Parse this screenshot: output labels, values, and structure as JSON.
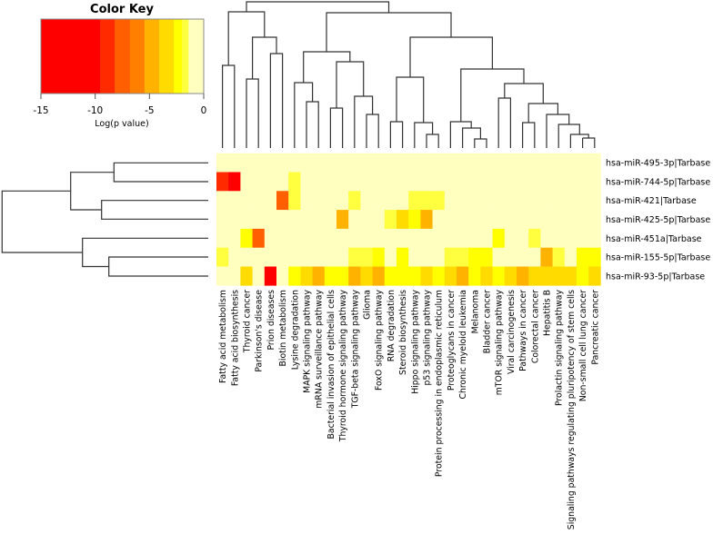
{
  "chart_data": {
    "type": "heatmap",
    "title": "Color Key",
    "colorbar_label": "Log(p value)",
    "colorbar_ticks": [
      "-15",
      "-10",
      "-5",
      "0"
    ],
    "colorbar_range": [
      -15,
      0
    ],
    "breaks": [
      -15,
      -9.55,
      -8.2,
      -6.8,
      -5.45,
      -4.1,
      -2.75,
      -2,
      -1.4,
      0
    ],
    "colors": [
      "#FF0000",
      "#FF2A00",
      "#FF5F00",
      "#FF8000",
      "#FFB300",
      "#FFDB00",
      "#FFFF00",
      "#FFFF40",
      "#FFFFC0"
    ],
    "rows": [
      "hsa-miR-495-3p|Tarbase",
      "hsa-miR-744-5p|Tarbase",
      "hsa-miR-421|Tarbase",
      "hsa-miR-425-5p|Tarbase",
      "hsa-miR-451a|Tarbase",
      "hsa-miR-155-5p|Tarbase",
      "hsa-miR-93-5p|Tarbase"
    ],
    "columns": [
      "Fatty acid metabolism",
      "Fatty acid biosynthesis",
      "Thyroid cancer",
      "Parkinson's disease",
      "Prion diseases",
      "Biotin metabolism",
      "Lysine degradation",
      "MAPK signaling pathway",
      "mRNA surveillance pathway",
      "Bacterial invasion of epithelial cells",
      "Thyroid hormone signaling pathway",
      "TGF-beta signaling pathway",
      "Glioma",
      "FoxO signaling pathway",
      "RNA degradation",
      "Steroid biosynthesis",
      "Hippo signaling pathway",
      "p53 signaling pathway",
      "Protein processing in endoplasmic reticulum",
      "Proteoglycans in cancer",
      "Chronic myeloid leukemia",
      "Melanoma",
      "Bladder cancer",
      "mTOR signaling pathway",
      "Viral carcinogenesis",
      "Pathways in cancer",
      "Colorectal cancer",
      "Hepatitis B",
      "Prolactin signaling pathway",
      "Signaling pathways regulating pluripotency of stem cells",
      "Non-small cell lung cancer",
      "Pancreatic cancer"
    ],
    "values": [
      [
        0,
        0,
        0,
        0,
        0,
        0,
        0,
        0,
        0,
        0,
        0,
        0,
        0,
        0,
        0,
        0,
        0,
        0,
        0,
        0,
        0,
        0,
        0,
        0,
        0,
        0,
        0,
        0,
        0,
        0,
        0,
        0
      ],
      [
        -9,
        -13,
        0,
        0,
        0,
        0,
        -1.5,
        0,
        0,
        0,
        0,
        0,
        0,
        0,
        0,
        0,
        0,
        0,
        0,
        0,
        0,
        0,
        0,
        0,
        0,
        0,
        0,
        0,
        0,
        0,
        0,
        0
      ],
      [
        0,
        0,
        0,
        0,
        0,
        -8,
        -1.5,
        0,
        0,
        0,
        0,
        -1.5,
        0,
        0,
        0,
        0,
        -1.5,
        -1.5,
        -1.5,
        0,
        0,
        0,
        0,
        0,
        0,
        0,
        0,
        0,
        0,
        0,
        0,
        0
      ],
      [
        0,
        0,
        0,
        0,
        0,
        0,
        0,
        0,
        0,
        0,
        -4.5,
        0,
        0,
        0,
        -1.5,
        -3.5,
        -2.5,
        -4.5,
        0,
        0,
        0,
        0,
        0,
        0,
        0,
        0,
        0,
        0,
        0,
        0,
        0,
        0
      ],
      [
        0,
        0,
        -2.5,
        -8,
        0,
        0,
        0,
        0,
        0,
        0,
        0,
        0,
        0,
        0,
        0,
        0,
        0,
        0,
        0,
        0,
        0,
        0,
        0,
        -2.5,
        0,
        0,
        -1.5,
        0,
        0,
        0,
        0,
        0
      ],
      [
        -1.5,
        0,
        0,
        0,
        0,
        0,
        0,
        0,
        0,
        0,
        0,
        -1.5,
        -1.5,
        -2.5,
        0,
        -2.5,
        0,
        0,
        0,
        -1.5,
        -1.5,
        -2.5,
        -2.5,
        0,
        0,
        0,
        0,
        -4.5,
        -1.5,
        0,
        -2.5,
        -2.5
      ],
      [
        0,
        0,
        -3.5,
        0,
        -13,
        0,
        -2.5,
        -3.5,
        -4.5,
        -2.5,
        -2.5,
        -4.5,
        -3.5,
        -4.5,
        -2.5,
        -2.5,
        -2.5,
        -3.5,
        -2.5,
        -3.5,
        -4.5,
        -2.5,
        -3.5,
        -2.5,
        -3.5,
        -4.5,
        -3.5,
        -3.5,
        -3.5,
        -3.5,
        -2.5,
        -3.5
      ]
    ]
  }
}
